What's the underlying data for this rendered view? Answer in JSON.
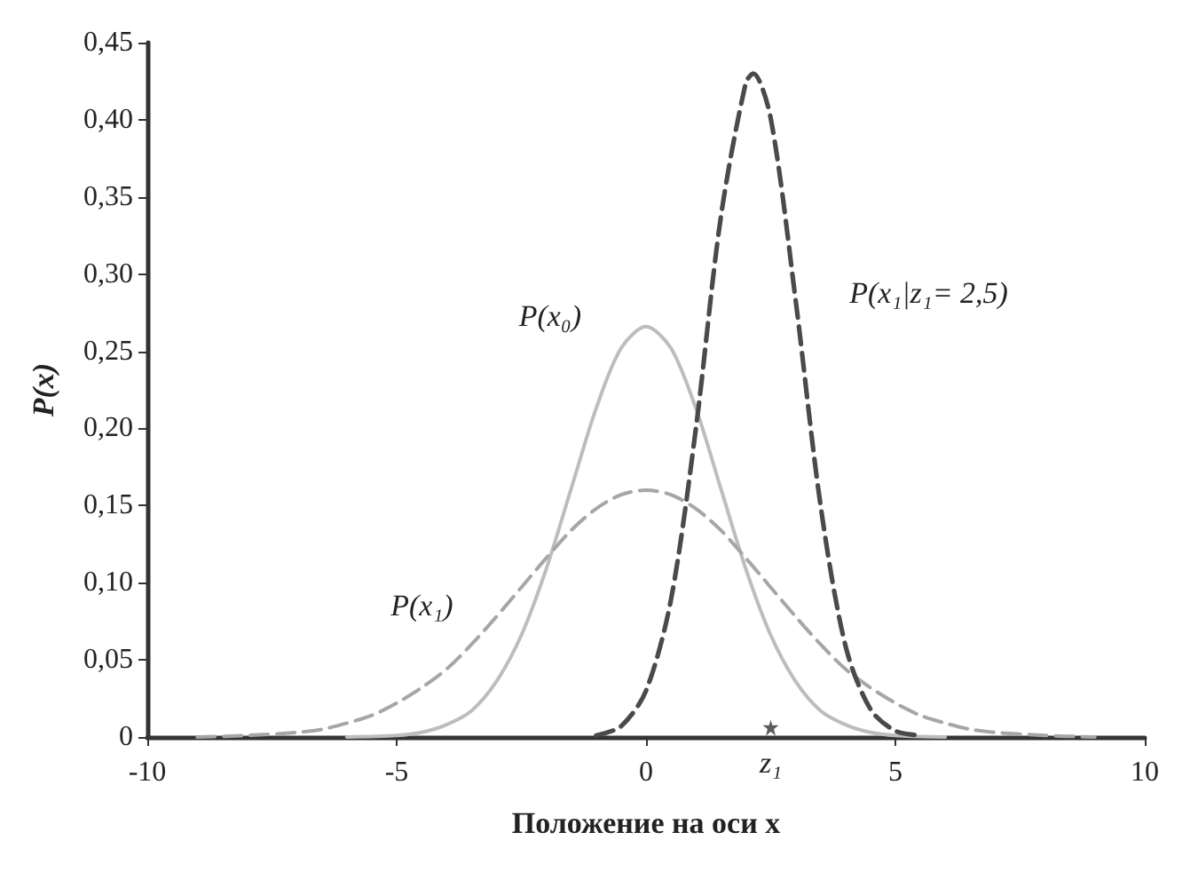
{
  "chart_data": {
    "type": "line",
    "xlabel": "Положение на оси x",
    "ylabel": "P(x)",
    "xlim": [
      -10,
      10
    ],
    "xticks": [
      -10,
      -5,
      0,
      5,
      10
    ],
    "ylim": [
      0,
      0.45
    ],
    "yticks": [
      0,
      {
        "value": 0.05,
        "label": "0,05"
      },
      {
        "value": 0.1,
        "label": "0,10"
      },
      {
        "value": 0.15,
        "label": "0,15"
      },
      {
        "value": 0.2,
        "label": "0,20"
      },
      {
        "value": 0.25,
        "label": "0,25"
      },
      {
        "value": 0.3,
        "label": "0,30"
      },
      {
        "value": 0.35,
        "label": "0,35"
      },
      {
        "value": 0.4,
        "label": "0,40"
      },
      {
        "value": 0.45,
        "label": "0,45"
      }
    ],
    "grid": false,
    "legend": false,
    "marker": "none",
    "series": [
      {
        "name": "P(x₀)",
        "color": "#bdbdbd",
        "line_style": "solid",
        "x": [
          -6,
          -5,
          -4.5,
          -4,
          -3.5,
          -3,
          -2.5,
          -2,
          -1.5,
          -1,
          -0.5,
          0,
          0.5,
          1,
          1.5,
          2,
          2.5,
          3,
          3.5,
          4,
          4.5,
          5,
          6
        ],
        "values": [
          0,
          0.001,
          0.003,
          0.008,
          0.017,
          0.036,
          0.066,
          0.109,
          0.161,
          0.213,
          0.252,
          0.266,
          0.252,
          0.213,
          0.161,
          0.109,
          0.066,
          0.036,
          0.017,
          0.008,
          0.003,
          0.001,
          0
        ]
      },
      {
        "name": "P(x₁)",
        "color": "#a6a6a6",
        "line_style": "dashed",
        "x": [
          -9,
          -8,
          -7,
          -6.5,
          -6,
          -5.5,
          -5,
          -4.5,
          -4,
          -3.5,
          -3,
          -2.5,
          -2,
          -1.5,
          -1,
          -0.5,
          0,
          0.5,
          1,
          1.5,
          2,
          2.5,
          3,
          3.5,
          4,
          4.5,
          5,
          5.5,
          6,
          6.5,
          7,
          8,
          9
        ],
        "values": [
          0,
          0.001,
          0.003,
          0.005,
          0.009,
          0.014,
          0.022,
          0.032,
          0.044,
          0.06,
          0.078,
          0.097,
          0.116,
          0.134,
          0.148,
          0.157,
          0.16,
          0.157,
          0.148,
          0.134,
          0.116,
          0.097,
          0.078,
          0.06,
          0.044,
          0.032,
          0.022,
          0.014,
          0.009,
          0.005,
          0.003,
          0.001,
          0
        ]
      },
      {
        "name": "P(x₁|z₁= 2,5)",
        "color": "#4a4a4a",
        "line_style": "dashed",
        "x": [
          -1,
          -0.5,
          0,
          0.5,
          1,
          1.5,
          2,
          2.15,
          2.5,
          3,
          3.5,
          4,
          4.5,
          5,
          5.5
        ],
        "values": [
          0.001,
          0.007,
          0.03,
          0.089,
          0.2,
          0.337,
          0.424,
          0.43,
          0.401,
          0.283,
          0.15,
          0.059,
          0.018,
          0.004,
          0.001
        ]
      },
      {
        "type": "scatter",
        "color": "#333333",
        "marker": "star",
        "x": [
          2.5
        ],
        "values": [
          0.006
        ]
      }
    ],
    "annotations": [
      {
        "text": "z₁",
        "x": 2.5,
        "y": 0
      }
    ]
  }
}
